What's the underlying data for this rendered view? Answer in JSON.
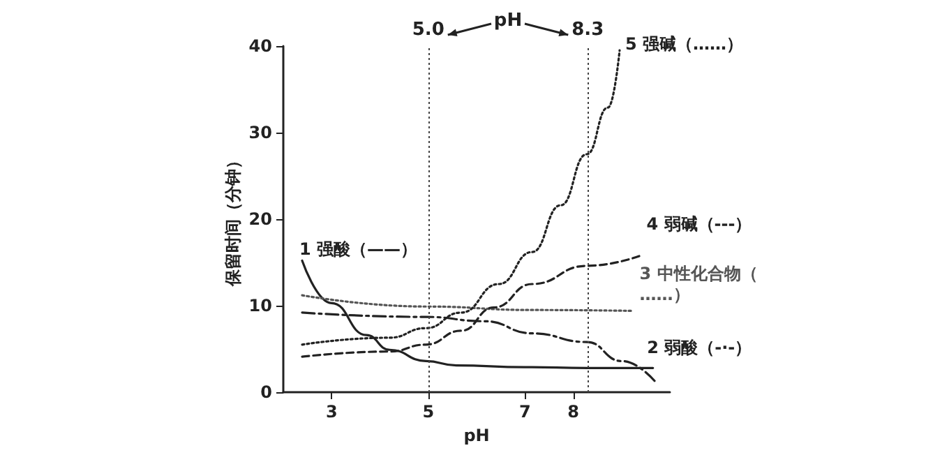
{
  "chart_data": {
    "type": "line",
    "xlabel": "pH",
    "ylabel": "保留时间（分钟）",
    "xlim": [
      2,
      10
    ],
    "xticks": [
      3,
      5,
      7,
      8
    ],
    "ylim": [
      0,
      40
    ],
    "yticks": [
      0,
      10,
      20,
      30,
      40
    ],
    "grid": false,
    "legend": false,
    "marker": "none",
    "series": [
      {
        "name": "1 强酸（——）",
        "color": "#222222",
        "line_style": "solid",
        "x": [
          2.39,
          3,
          3.72,
          4.2,
          4.95,
          5.58,
          7,
          8.3,
          9.65
        ],
        "values": [
          15.2,
          10.3,
          6.6,
          4.9,
          3.6,
          3.1,
          2.9,
          2.8,
          2.8
        ]
      },
      {
        "name": "2 弱酸（-·-）",
        "color": "#222222",
        "line_style": "dashdot",
        "x": [
          2.39,
          4.95,
          6.17,
          7.15,
          8.28,
          9.0,
          9.7
        ],
        "values": [
          9.2,
          8.7,
          8.2,
          6.8,
          5.8,
          3.6,
          1.2
        ]
      },
      {
        "name": "3 中性化合物（……）",
        "color": "#555555",
        "line_style": "dotted",
        "x": [
          2.39,
          4.95,
          7.15,
          9.2
        ],
        "values": [
          11.2,
          9.9,
          9.5,
          9.4
        ]
      },
      {
        "name": "4 弱碱（---）",
        "color": "#222222",
        "line_style": "dashed",
        "x": [
          2.39,
          4.2,
          4.95,
          5.68,
          6.36,
          7.15,
          8.28,
          9.4
        ],
        "values": [
          4.1,
          4.7,
          5.5,
          7.1,
          9.8,
          12.5,
          14.6,
          15.8
        ]
      },
      {
        "name": "5 强碱（……）",
        "color": "#222222",
        "line_style": "dotted",
        "x": [
          2.39,
          4.2,
          4.95,
          5.68,
          6.46,
          7.15,
          7.74,
          8.28,
          8.72,
          8.96
        ],
        "values": [
          5.5,
          6.3,
          7.4,
          9.2,
          12.5,
          16.2,
          21.6,
          27.5,
          32.9,
          39.5
        ]
      }
    ],
    "ref_lines": [
      {
        "axis": "x",
        "value": 5.0,
        "label": "5.0",
        "color": "#444444",
        "line_style": "dotted"
      },
      {
        "axis": "x",
        "value": 8.3,
        "label": "8.3",
        "color": "#444444",
        "line_style": "dotted"
      }
    ],
    "annotations": [
      "pH"
    ]
  }
}
